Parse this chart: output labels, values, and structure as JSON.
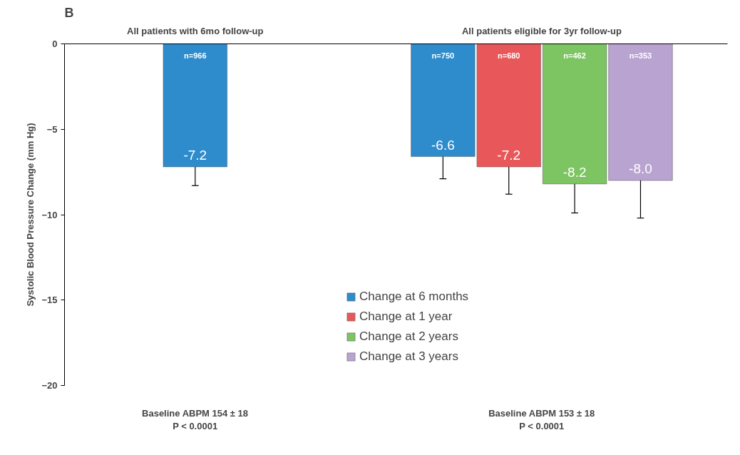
{
  "chart_data": {
    "type": "bar",
    "title": "B",
    "ylabel": "Systolic Blood Pressure Change (mm Hg)",
    "categories": [
      "All patients with 6mo follow-up",
      "All patients eligible for 3yr follow-up"
    ],
    "series": [
      {
        "name": "Change at 6 months",
        "color": "#2e8bcc",
        "values": [
          -7.2,
          -6.6
        ],
        "value_labels": [
          "-7.2",
          "-6.6"
        ],
        "errors": [
          [
            -8.3,
            -7.2
          ],
          [
            -7.9,
            -6.6
          ]
        ]
      },
      {
        "name": "Change at 1 year",
        "color": "#e8585a",
        "values": [
          null,
          -7.2
        ],
        "value_labels": [
          null,
          "-7.2"
        ],
        "errors": [
          null,
          [
            -8.8,
            -7.2
          ]
        ]
      },
      {
        "name": "Change at 2 years",
        "color": "#7dc462",
        "values": [
          null,
          -8.2
        ],
        "value_labels": [
          null,
          "-8.2"
        ],
        "errors": [
          null,
          [
            -9.9,
            -8.2
          ]
        ]
      },
      {
        "name": "Change at 3 years",
        "color": "#b9a3d1",
        "values": [
          null,
          -8.0
        ],
        "value_labels": [
          null,
          "-8.0"
        ],
        "errors": [
          null,
          [
            -10.2,
            -8.0
          ]
        ]
      }
    ],
    "ylim": [
      -20,
      0
    ],
    "yticks": [
      0,
      -5,
      -10,
      -15,
      -20
    ],
    "grid": false,
    "legend": "bottom",
    "annotations": [
      "n=966",
      "n=750",
      "n=680",
      "n=462",
      "n=353",
      "Baseline ABPM 154 ± 18",
      "P < 0.0001",
      "Baseline ABPM 153 ± 18",
      "P < 0.0001"
    ]
  }
}
